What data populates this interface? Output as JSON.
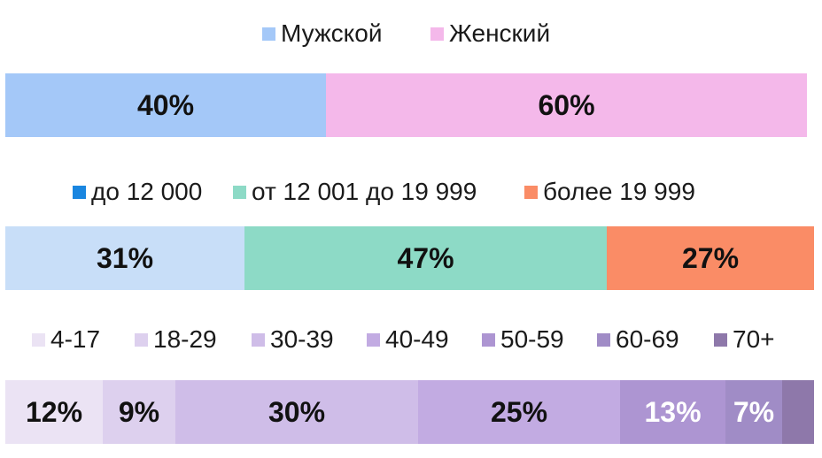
{
  "chart_data": [
    {
      "type": "bar",
      "stacked": true,
      "orientation": "horizontal",
      "legend_position": "top",
      "series": [
        {
          "name": "Мужской",
          "value": 40,
          "label": "40%",
          "color": "#a4c8f8"
        },
        {
          "name": "Женский",
          "value": 60,
          "label": "60%",
          "color": "#f4b8ea"
        }
      ]
    },
    {
      "type": "bar",
      "stacked": true,
      "orientation": "horizontal",
      "legend_position": "top",
      "series": [
        {
          "name": "до 12 000",
          "value": 31,
          "label": "31%",
          "color": "#c8def8",
          "legend_color": "#1a86e0"
        },
        {
          "name": "от 12 001 до 19 999",
          "value": 47,
          "label": "47%",
          "color": "#8ddac6"
        },
        {
          "name": "более 19 999",
          "value": 27,
          "label": "27%",
          "color": "#fa8c66"
        }
      ]
    },
    {
      "type": "bar",
      "stacked": true,
      "orientation": "horizontal",
      "legend_position": "top",
      "series": [
        {
          "name": "4-17",
          "value": 12,
          "label": "12%",
          "color": "#ebe3f4"
        },
        {
          "name": "18-29",
          "value": 9,
          "label": "9%",
          "color": "#ddd0ee"
        },
        {
          "name": "30-39",
          "value": 30,
          "label": "30%",
          "color": "#cfbde8"
        },
        {
          "name": "40-49",
          "value": 25,
          "label": "25%",
          "color": "#c2abe2"
        },
        {
          "name": "50-59",
          "value": 13,
          "label": "13%",
          "color": "#ad95d2",
          "label_color": "#ffffff"
        },
        {
          "name": "60-69",
          "value": 7,
          "label": "7%",
          "color": "#a08cc6",
          "label_color": "#ffffff"
        },
        {
          "name": "70+",
          "value": 4,
          "label": "",
          "color": "#8e78aa"
        }
      ]
    }
  ]
}
